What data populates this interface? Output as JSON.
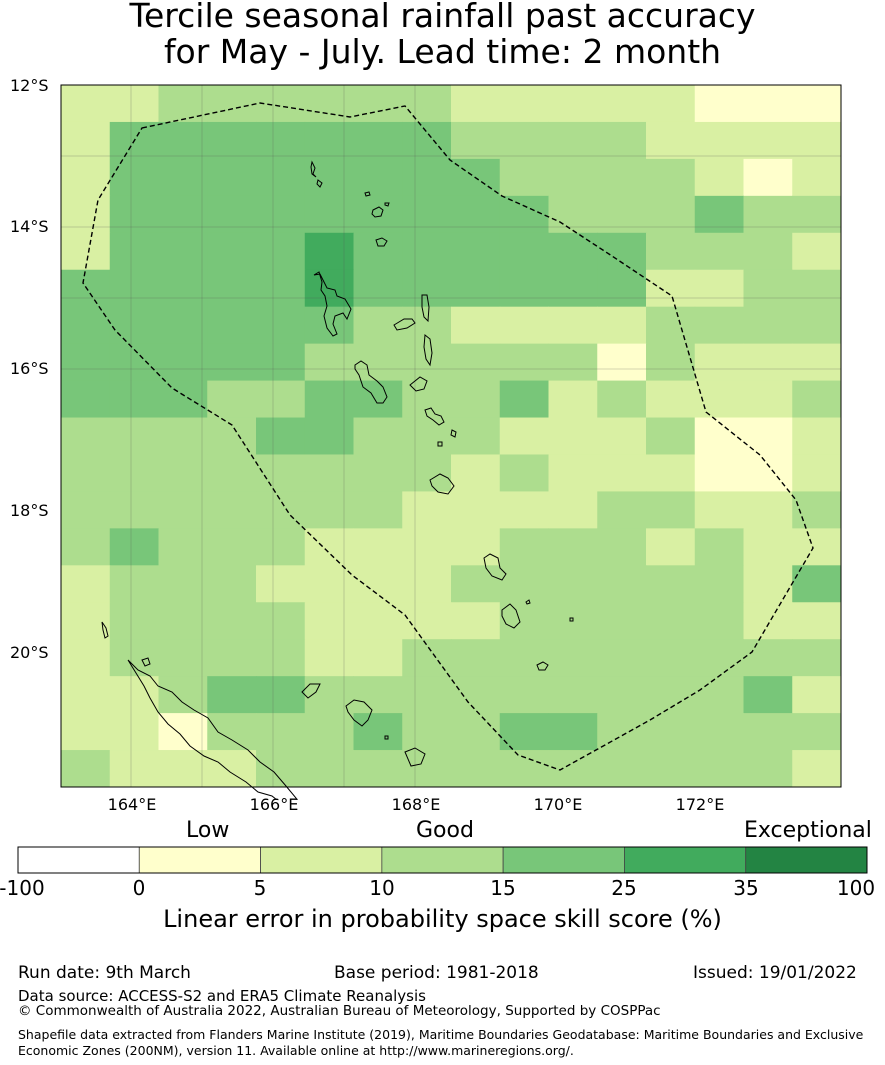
{
  "title": {
    "line1": "Tercile seasonal rainfall past accuracy",
    "line2": "for May - July. Lead time: 2 month"
  },
  "map": {
    "lat_labels": [
      "12°S",
      "14°S",
      "16°S",
      "18°S",
      "20°S"
    ],
    "lon_labels": [
      "164°E",
      "166°E",
      "168°E",
      "170°E",
      "172°E"
    ],
    "category_skill": [
      "0-5",
      "5-10",
      "10-15",
      "15-25",
      "25-35"
    ],
    "grid_rows": [
      "2233333322222111",
      "2444444433332222",
      "2444444443333212",
      "2444444444333433",
      "2444454444443332",
      "4444454444442233",
      "4444443322223333",
      "4444433333313222",
      "4443344334232223",
      "3333443332223112",
      "3333333323222112",
      "3333333222233223",
      "3433322223332322",
      "2333222233333324",
      "2333322223333322",
      "2333322333333333",
      "2234433333333342",
      "2213334334433333",
      "3222333333333332"
    ]
  },
  "colorbar": {
    "categories": [
      "Low",
      "Good",
      "Exceptional"
    ],
    "tick_labels": [
      "-100",
      "0",
      "5",
      "10",
      "15",
      "25",
      "35",
      "100"
    ],
    "colors": [
      "#ffffff",
      "#ffffcc",
      "#d9f0a3",
      "#addd8e",
      "#78c679",
      "#41ab5d",
      "#238443"
    ],
    "title": "Linear error in probability space skill score (%)"
  },
  "footer": {
    "run_date": "Run date: 9th March",
    "base_period": "Base period: 1981-2018",
    "issued": "Issued: 19/01/2022",
    "data_source": "Data source: ACCESS-S2 and ERA5 Climate Reanalysis",
    "copyright": "© Commonwealth of Australia 2022, Australian Bureau of Meteorology, Supported by COSPPac",
    "shapefile": "Shapefile data extracted from Flanders Marine Institute (2019), Maritime Boundaries Geodatabase: Maritime Boundaries and Exclusive Economic Zones (200NM), version 11. Available online at http://www.marineregions.org/."
  }
}
